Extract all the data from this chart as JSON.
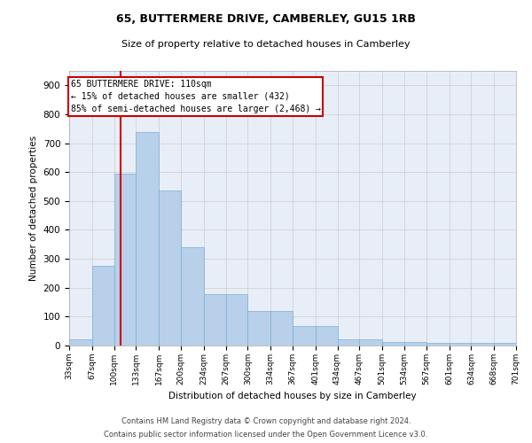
{
  "title": "65, BUTTERMERE DRIVE, CAMBERLEY, GU15 1RB",
  "subtitle": "Size of property relative to detached houses in Camberley",
  "xlabel": "Distribution of detached houses by size in Camberley",
  "ylabel": "Number of detached properties",
  "bar_values": [
    22,
    275,
    595,
    740,
    535,
    340,
    178,
    178,
    118,
    118,
    68,
    68,
    22,
    22,
    13,
    13,
    10,
    10,
    8,
    8
  ],
  "bin_edges": [
    33,
    67,
    100,
    133,
    167,
    200,
    234,
    267,
    300,
    334,
    367,
    401,
    434,
    467,
    501,
    534,
    567,
    601,
    634,
    668,
    701
  ],
  "tick_labels": [
    "33sqm",
    "67sqm",
    "100sqm",
    "133sqm",
    "167sqm",
    "200sqm",
    "234sqm",
    "267sqm",
    "300sqm",
    "334sqm",
    "367sqm",
    "401sqm",
    "434sqm",
    "467sqm",
    "501sqm",
    "534sqm",
    "567sqm",
    "601sqm",
    "634sqm",
    "668sqm",
    "701sqm"
  ],
  "bar_color": "#b8d0ea",
  "bar_edge_color": "#7aafd4",
  "vline_x": 110,
  "vline_color": "#cc0000",
  "ylim": [
    0,
    950
  ],
  "yticks": [
    0,
    100,
    200,
    300,
    400,
    500,
    600,
    700,
    800,
    900
  ],
  "annotation_text": "65 BUTTERMERE DRIVE: 110sqm\n← 15% of detached houses are smaller (432)\n85% of semi-detached houses are larger (2,468) →",
  "annotation_box_color": "#ffffff",
  "annotation_box_edge": "#cc0000",
  "footer_line1": "Contains HM Land Registry data © Crown copyright and database right 2024.",
  "footer_line2": "Contains public sector information licensed under the Open Government Licence v3.0.",
  "background_color": "#e8eef8",
  "grid_color": "#cccccc",
  "title_fontsize": 9,
  "subtitle_fontsize": 8
}
